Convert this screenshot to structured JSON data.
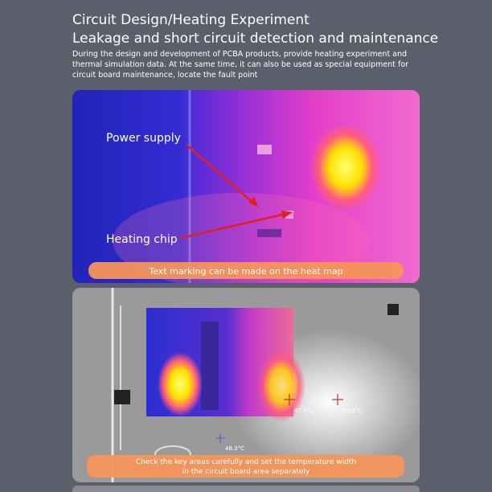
{
  "header": {
    "title": "Circuit Design/Heating Experiment",
    "subtitle": "Leakage and short circuit detection and maintenance",
    "description": [
      "During the design and development of PCBA products, provide heating experiment and",
      "thermal simulation data. At the same time, it can also be used as special equipment for",
      "circuit board maintenance, locate the fault point"
    ]
  },
  "panel1": {
    "labels": [
      "Power supply",
      "Heating chip"
    ],
    "caption": "Text marking can be made on the heat map"
  },
  "panel2": {
    "temperatures": [
      "47.4°C",
      "53.0°C",
      "48.3°C"
    ],
    "caption": [
      "Check the key areas carefully and set the temperature width",
      "in the circuit board area separately"
    ]
  }
}
